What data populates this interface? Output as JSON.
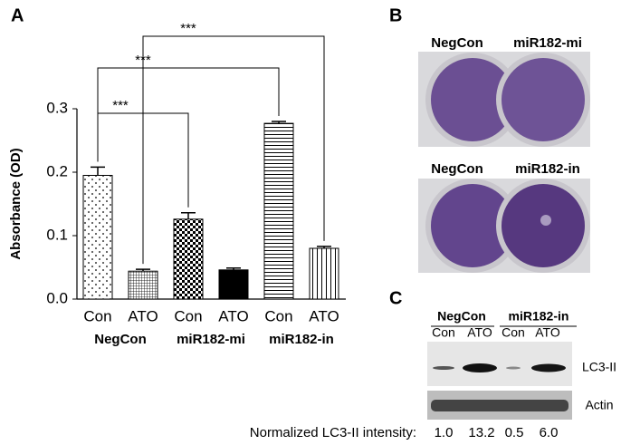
{
  "chart_data": {
    "type": "bar",
    "panel_label": "A",
    "y_label": "Absorbance (OD)",
    "categories": [
      "Con",
      "ATO",
      "Con",
      "ATO",
      "Con",
      "ATO"
    ],
    "groups": [
      "NegCon",
      "miR182-mi",
      "miR182-in"
    ],
    "values": [
      0.195,
      0.044,
      0.126,
      0.046,
      0.277,
      0.08
    ],
    "errors": [
      0.013,
      0.003,
      0.01,
      0.003,
      0.003,
      0.003
    ],
    "patterns": [
      "dots",
      "fine-grid",
      "checker",
      "solid",
      "horizontal",
      "vertical"
    ],
    "color": "#000000",
    "ylim": [
      0,
      0.3
    ],
    "yticks": [
      {
        "value": 0,
        "label": "0.0"
      },
      0.1,
      0.2,
      0.3
    ],
    "significance": [
      {
        "from": 0,
        "to": 2,
        "label": "***"
      },
      {
        "from": 0,
        "to": 4,
        "label": "***"
      },
      {
        "from": 1,
        "to": 5,
        "label": "***"
      }
    ]
  },
  "panel_b": {
    "label": "B",
    "top": [
      "NegCon",
      "miR182-mi"
    ],
    "bottom": [
      "NegCon",
      "miR182-in"
    ]
  },
  "panel_c": {
    "label": "C",
    "groups": [
      "NegCon",
      "miR182-in"
    ],
    "lanes": [
      "Con",
      "ATO",
      "Con",
      "ATO"
    ],
    "bands": [
      "LC3-II",
      "Actin"
    ],
    "intensity_label": "Normalized LC3-II intensity:",
    "intensities": [
      "1.0",
      "13.2",
      "0.5",
      "6.0"
    ]
  }
}
